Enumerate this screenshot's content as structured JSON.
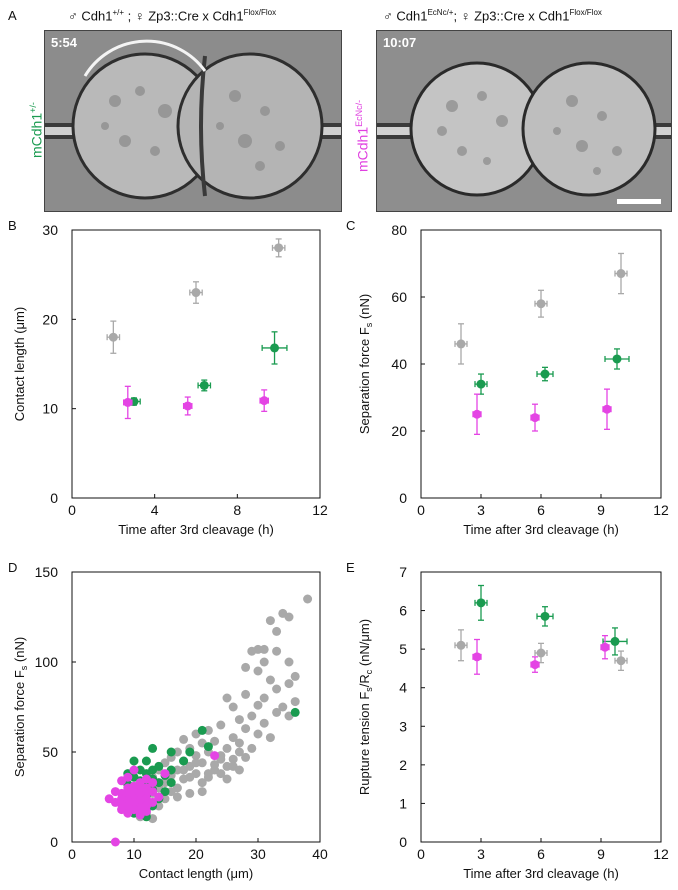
{
  "panel_letters": {
    "A": "A",
    "B": "B",
    "C": "C",
    "D": "D",
    "E": "E"
  },
  "panel_a": {
    "left": {
      "male_symbol": "♂",
      "cdh1": "Cdh1",
      "male_sup": "+/+",
      "sep": " ; ",
      "female_symbol": "♀",
      "cross": " Zp3::Cre x Cdh1",
      "flox_sup": "Flox/Flox",
      "time": "5:54",
      "side_label_main": "mCdh1",
      "side_label_sup": "+/-",
      "side_color": "#1a9b50"
    },
    "right": {
      "male_symbol": "♂",
      "cdh1": "Cdh1",
      "male_sup": "EcNc/+",
      "sep": "; ",
      "female_symbol": "♀",
      "cross": " Zp3::Cre x Cdh1",
      "flox_sup": "Flox/Flox",
      "time": "10:07",
      "side_label_main": "mCdh1",
      "side_label_sup": "EcNc/-",
      "side_color": "#e040e0"
    }
  },
  "colors": {
    "gray": "#a9a9a9",
    "green": "#1a9b50",
    "magenta": "#e444e4"
  },
  "chart_data": [
    {
      "panel": "B",
      "type": "scatter",
      "xlabel": "Time after 3rd cleavage (h)",
      "ylabel": "Contact length (μm)",
      "xlim": [
        0,
        12
      ],
      "ylim": [
        0,
        30
      ],
      "xticks": [
        0,
        4,
        8,
        12
      ],
      "yticks": [
        0,
        10,
        20,
        30
      ],
      "series": [
        {
          "color": "gray",
          "points": [
            {
              "x": 2.0,
              "y": 18.0,
              "xerr": 0.3,
              "yerr": 1.8
            },
            {
              "x": 6.0,
              "y": 23.0,
              "xerr": 0.3,
              "yerr": 1.2
            },
            {
              "x": 10.0,
              "y": 28.0,
              "xerr": 0.3,
              "yerr": 1.0
            }
          ]
        },
        {
          "color": "green",
          "points": [
            {
              "x": 3.0,
              "y": 10.8,
              "xerr": 0.3,
              "yerr": 0.4
            },
            {
              "x": 6.4,
              "y": 12.6,
              "xerr": 0.3,
              "yerr": 0.6
            },
            {
              "x": 9.8,
              "y": 16.8,
              "xerr": 0.6,
              "yerr": 1.8
            }
          ]
        },
        {
          "color": "magenta",
          "points": [
            {
              "x": 2.7,
              "y": 10.7,
              "xerr": 0.2,
              "yerr": 1.8
            },
            {
              "x": 5.6,
              "y": 10.3,
              "xerr": 0.2,
              "yerr": 1.0
            },
            {
              "x": 9.3,
              "y": 10.9,
              "xerr": 0.2,
              "yerr": 1.2
            }
          ]
        }
      ]
    },
    {
      "panel": "C",
      "type": "scatter",
      "xlabel": "Time after 3rd cleavage (h)",
      "ylabel": "Separation force F",
      "ylabel_sub": "s",
      "ylabel_tail": " (nN)",
      "xlim": [
        0,
        12
      ],
      "ylim": [
        0,
        80
      ],
      "xticks": [
        0,
        3,
        6,
        9,
        12
      ],
      "yticks": [
        0,
        20,
        40,
        60,
        80
      ],
      "series": [
        {
          "color": "gray",
          "points": [
            {
              "x": 2.0,
              "y": 46.0,
              "xerr": 0.3,
              "yerr": 6
            },
            {
              "x": 6.0,
              "y": 58.0,
              "xerr": 0.3,
              "yerr": 4
            },
            {
              "x": 10.0,
              "y": 67.0,
              "xerr": 0.3,
              "yerr": 6
            }
          ]
        },
        {
          "color": "green",
          "points": [
            {
              "x": 3.0,
              "y": 34.0,
              "xerr": 0.3,
              "yerr": 3
            },
            {
              "x": 6.2,
              "y": 37.0,
              "xerr": 0.4,
              "yerr": 2
            },
            {
              "x": 9.8,
              "y": 41.5,
              "xerr": 0.6,
              "yerr": 3
            }
          ]
        },
        {
          "color": "magenta",
          "points": [
            {
              "x": 2.8,
              "y": 25.0,
              "xerr": 0.2,
              "yerr": 6
            },
            {
              "x": 5.7,
              "y": 24.0,
              "xerr": 0.2,
              "yerr": 4
            },
            {
              "x": 9.3,
              "y": 26.5,
              "xerr": 0.2,
              "yerr": 6
            }
          ]
        }
      ]
    },
    {
      "panel": "D",
      "type": "scatter",
      "xlabel": "Contact length (μm)",
      "ylabel": "Separation force F",
      "ylabel_sub": "s",
      "ylabel_tail": " (nN)",
      "xlim": [
        0,
        40
      ],
      "ylim": [
        0,
        150
      ],
      "xticks": [
        0,
        10,
        20,
        30,
        40
      ],
      "yticks": [
        0,
        50,
        100,
        150
      ],
      "series": [
        {
          "color": "gray",
          "points": [
            [
              38,
              135
            ],
            [
              34,
              127
            ],
            [
              35,
              125
            ],
            [
              32,
              123
            ],
            [
              33,
              117
            ],
            [
              31,
              107
            ],
            [
              30,
              107
            ],
            [
              29,
              106
            ],
            [
              33,
              106
            ],
            [
              31,
              100
            ],
            [
              35,
              100
            ],
            [
              28,
              97
            ],
            [
              30,
              95
            ],
            [
              36,
              92
            ],
            [
              32,
              90
            ],
            [
              35,
              88
            ],
            [
              33,
              85
            ],
            [
              28,
              82
            ],
            [
              31,
              80
            ],
            [
              25,
              80
            ],
            [
              36,
              78
            ],
            [
              30,
              76
            ],
            [
              34,
              75
            ],
            [
              26,
              75
            ],
            [
              33,
              72
            ],
            [
              29,
              70
            ],
            [
              35,
              70
            ],
            [
              27,
              68
            ],
            [
              31,
              66
            ],
            [
              24,
              65
            ],
            [
              28,
              63
            ],
            [
              22,
              62
            ],
            [
              30,
              60
            ],
            [
              20,
              60
            ],
            [
              26,
              58
            ],
            [
              32,
              58
            ],
            [
              18,
              57
            ],
            [
              23,
              56
            ],
            [
              27,
              55
            ],
            [
              21,
              55
            ],
            [
              19,
              52
            ],
            [
              25,
              52
            ],
            [
              29,
              52
            ],
            [
              17,
              50
            ],
            [
              22,
              50
            ],
            [
              24,
              48
            ],
            [
              20,
              48
            ],
            [
              16,
              47
            ],
            [
              28,
              47
            ],
            [
              26,
              46
            ],
            [
              18,
              45
            ],
            [
              21,
              44
            ],
            [
              15,
              44
            ],
            [
              23,
              43
            ],
            [
              19,
              42
            ],
            [
              25,
              42
            ],
            [
              17,
              40
            ],
            [
              14,
              40
            ],
            [
              20,
              38
            ],
            [
              22,
              38
            ],
            [
              16,
              37
            ],
            [
              13,
              36
            ],
            [
              18,
              35
            ],
            [
              15,
              33
            ],
            [
              21,
              33
            ],
            [
              12,
              32
            ],
            [
              17,
              30
            ],
            [
              14,
              30
            ],
            [
              16,
              28
            ],
            [
              13,
              27
            ],
            [
              19,
              27
            ],
            [
              11,
              25
            ],
            [
              15,
              24
            ],
            [
              12,
              22
            ],
            [
              14,
              20
            ],
            [
              10,
              18
            ],
            [
              12,
              16
            ],
            [
              11,
              14
            ],
            [
              13,
              13
            ],
            [
              24,
              46
            ],
            [
              26,
              42
            ],
            [
              27,
              50
            ],
            [
              23,
              40
            ],
            [
              18,
              40
            ],
            [
              20,
              44
            ],
            [
              22,
              36
            ],
            [
              16,
              38
            ],
            [
              24,
              38
            ],
            [
              19,
              36
            ],
            [
              21,
              28
            ],
            [
              17,
              25
            ],
            [
              25,
              35
            ],
            [
              27,
              40
            ]
          ]
        },
        {
          "color": "green",
          "points": [
            [
              36,
              72
            ],
            [
              21,
              62
            ],
            [
              22,
              53
            ],
            [
              13,
              52
            ],
            [
              16,
              50
            ],
            [
              19,
              50
            ],
            [
              10,
              45
            ],
            [
              12,
              45
            ],
            [
              18,
              45
            ],
            [
              14,
              42
            ],
            [
              11,
              40
            ],
            [
              13,
              40
            ],
            [
              16,
              40
            ],
            [
              9,
              38
            ],
            [
              12,
              38
            ],
            [
              15,
              37
            ],
            [
              10,
              36
            ],
            [
              13,
              35
            ],
            [
              11,
              34
            ],
            [
              14,
              33
            ],
            [
              9,
              32
            ],
            [
              12,
              31
            ],
            [
              10,
              30
            ],
            [
              13,
              29
            ],
            [
              11,
              28
            ],
            [
              15,
              28
            ],
            [
              12,
              26
            ],
            [
              10,
              24
            ],
            [
              14,
              24
            ],
            [
              11,
              22
            ],
            [
              13,
              20
            ],
            [
              12,
              18
            ],
            [
              10,
              16
            ],
            [
              12,
              14
            ],
            [
              16,
              33
            ]
          ]
        },
        {
          "color": "magenta",
          "points": [
            [
              23,
              48
            ],
            [
              10,
              40
            ],
            [
              15,
              38
            ],
            [
              9,
              36
            ],
            [
              12,
              35
            ],
            [
              8,
              34
            ],
            [
              11,
              33
            ],
            [
              13,
              33
            ],
            [
              10,
              31
            ],
            [
              12,
              30
            ],
            [
              9,
              30
            ],
            [
              11,
              29
            ],
            [
              7,
              28
            ],
            [
              10,
              28
            ],
            [
              13,
              28
            ],
            [
              8,
              27
            ],
            [
              12,
              27
            ],
            [
              9,
              26
            ],
            [
              11,
              26
            ],
            [
              14,
              25
            ],
            [
              6,
              24
            ],
            [
              8,
              24
            ],
            [
              10,
              24
            ],
            [
              12,
              24
            ],
            [
              9,
              23
            ],
            [
              11,
              23
            ],
            [
              7,
              22
            ],
            [
              13,
              22
            ],
            [
              8,
              21
            ],
            [
              10,
              21
            ],
            [
              12,
              20
            ],
            [
              9,
              20
            ],
            [
              11,
              19
            ],
            [
              10,
              18
            ],
            [
              8,
              18
            ],
            [
              12,
              17
            ],
            [
              9,
              16
            ],
            [
              11,
              15
            ],
            [
              7,
              0
            ]
          ]
        }
      ]
    },
    {
      "panel": "E",
      "type": "scatter",
      "xlabel": "Time after 3rd cleavage (h)",
      "ylabel": "Rupture tension F",
      "ylabel_sub": "s",
      "ylabel_mid": "/R",
      "ylabel_sub2": "c",
      "ylabel_tail": " (nN/μm)",
      "xlim": [
        0,
        12
      ],
      "ylim": [
        0,
        7
      ],
      "xticks": [
        0,
        3,
        6,
        9,
        12
      ],
      "yticks": [
        0,
        1,
        2,
        3,
        4,
        5,
        6,
        7
      ],
      "series": [
        {
          "color": "gray",
          "points": [
            {
              "x": 2.0,
              "y": 5.1,
              "xerr": 0.3,
              "yerr": 0.4
            },
            {
              "x": 6.0,
              "y": 4.9,
              "xerr": 0.3,
              "yerr": 0.25
            },
            {
              "x": 10.0,
              "y": 4.7,
              "xerr": 0.3,
              "yerr": 0.25
            }
          ]
        },
        {
          "color": "green",
          "points": [
            {
              "x": 3.0,
              "y": 6.2,
              "xerr": 0.3,
              "yerr": 0.45
            },
            {
              "x": 6.2,
              "y": 5.85,
              "xerr": 0.4,
              "yerr": 0.25
            },
            {
              "x": 9.7,
              "y": 5.2,
              "xerr": 0.6,
              "yerr": 0.35
            }
          ]
        },
        {
          "color": "magenta",
          "points": [
            {
              "x": 2.8,
              "y": 4.8,
              "xerr": 0.2,
              "yerr": 0.45
            },
            {
              "x": 5.7,
              "y": 4.6,
              "xerr": 0.2,
              "yerr": 0.2
            },
            {
              "x": 9.2,
              "y": 5.05,
              "xerr": 0.2,
              "yerr": 0.3
            }
          ]
        }
      ]
    }
  ]
}
